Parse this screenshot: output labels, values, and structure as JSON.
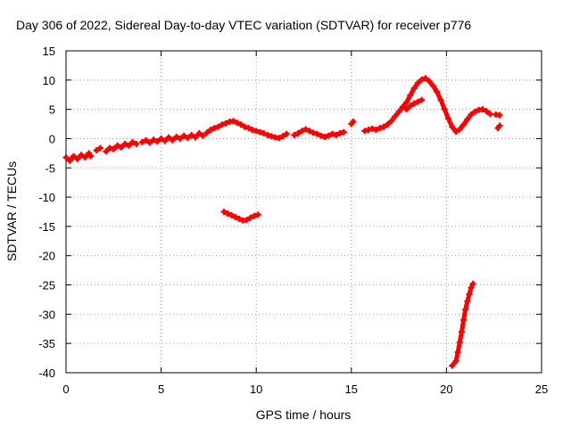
{
  "chart_data": {
    "type": "scatter",
    "title": "Day 306 of 2022, Sidereal Day-to-day VTEC variation (SDTVAR) for receiver p776",
    "xlabel": "GPS time / hours",
    "ylabel": "SDTVAR / TECUs",
    "xlim": [
      0,
      25
    ],
    "ylim": [
      -40,
      15
    ],
    "xticks": [
      0,
      5,
      10,
      15,
      20,
      25
    ],
    "yticks": [
      -40,
      -35,
      -30,
      -25,
      -20,
      -15,
      -10,
      -5,
      0,
      5,
      10,
      15
    ],
    "grid": true,
    "legend": "none",
    "series": [
      {
        "name": "SDTVAR",
        "color": "#ff0000",
        "marker": "plus",
        "segments": [
          [
            [
              0.0,
              -3.2
            ],
            [
              0.2,
              -3.8
            ],
            [
              0.4,
              -3.0
            ],
            [
              0.6,
              -3.5
            ],
            [
              0.8,
              -2.8
            ],
            [
              1.0,
              -3.2
            ],
            [
              1.2,
              -2.5
            ],
            [
              1.3,
              -3.0
            ]
          ],
          [
            [
              1.6,
              -2.0
            ],
            [
              1.8,
              -1.6
            ]
          ],
          [
            [
              2.1,
              -2.2
            ],
            [
              2.3,
              -1.6
            ],
            [
              2.5,
              -1.8
            ],
            [
              2.7,
              -1.2
            ],
            [
              2.9,
              -1.5
            ],
            [
              3.1,
              -0.9
            ],
            [
              3.3,
              -1.2
            ],
            [
              3.5,
              -0.6
            ],
            [
              3.7,
              -0.9
            ]
          ],
          [
            [
              4.0,
              -0.6
            ],
            [
              4.2,
              -0.3
            ],
            [
              4.4,
              -0.7
            ],
            [
              4.6,
              -0.2
            ],
            [
              4.8,
              -0.5
            ],
            [
              5.0,
              0.0
            ],
            [
              5.2,
              -0.4
            ],
            [
              5.4,
              0.2
            ],
            [
              5.6,
              -0.3
            ],
            [
              5.8,
              0.3
            ],
            [
              6.0,
              0.0
            ],
            [
              6.2,
              0.5
            ],
            [
              6.4,
              0.1
            ],
            [
              6.6,
              0.6
            ],
            [
              6.8,
              0.2
            ],
            [
              7.0,
              0.9
            ],
            [
              7.2,
              0.5
            ]
          ],
          [
            [
              7.4,
              1.0
            ],
            [
              7.6,
              1.5
            ],
            [
              7.8,
              1.8
            ],
            [
              8.0,
              2.0
            ],
            [
              8.2,
              2.4
            ],
            [
              8.4,
              2.6
            ],
            [
              8.6,
              2.9
            ],
            [
              8.8,
              3.0
            ],
            [
              9.0,
              2.7
            ],
            [
              9.2,
              2.4
            ],
            [
              9.4,
              2.0
            ],
            [
              9.6,
              1.8
            ],
            [
              9.8,
              1.5
            ],
            [
              10.0,
              1.3
            ],
            [
              10.2,
              1.1
            ],
            [
              10.4,
              0.9
            ]
          ],
          [
            [
              10.6,
              0.6
            ],
            [
              10.8,
              0.4
            ],
            [
              11.0,
              0.2
            ],
            [
              11.2,
              0.1
            ],
            [
              11.4,
              0.4
            ],
            [
              11.6,
              0.8
            ]
          ],
          [
            [
              12.0,
              0.6
            ],
            [
              12.2,
              0.9
            ],
            [
              12.4,
              1.3
            ],
            [
              12.6,
              1.6
            ],
            [
              12.8,
              1.3
            ],
            [
              13.0,
              1.0
            ],
            [
              13.2,
              0.8
            ],
            [
              13.4,
              0.5
            ],
            [
              13.6,
              0.3
            ],
            [
              13.8,
              0.5
            ],
            [
              14.0,
              0.8
            ],
            [
              14.2,
              0.6
            ],
            [
              14.4,
              0.9
            ],
            [
              14.6,
              1.1
            ]
          ],
          [
            [
              15.0,
              2.5
            ],
            [
              15.1,
              2.9
            ]
          ],
          [
            [
              15.7,
              1.3
            ],
            [
              15.9,
              1.5
            ],
            [
              16.1,
              1.7
            ],
            [
              16.3,
              1.5
            ],
            [
              16.5,
              1.8
            ],
            [
              16.7,
              2.0
            ],
            [
              16.9,
              2.4
            ],
            [
              17.1,
              3.0
            ],
            [
              17.3,
              3.8
            ],
            [
              17.5,
              4.6
            ],
            [
              17.7,
              5.4
            ],
            [
              17.9,
              6.2
            ],
            [
              18.1,
              7.4
            ],
            [
              18.3,
              8.6
            ],
            [
              18.5,
              9.5
            ],
            [
              18.7,
              10.1
            ],
            [
              18.9,
              10.3
            ],
            [
              19.1,
              9.8
            ],
            [
              19.3,
              9.0
            ],
            [
              19.5,
              8.0
            ],
            [
              19.7,
              6.6
            ],
            [
              19.9,
              5.0
            ],
            [
              20.1,
              3.4
            ],
            [
              20.3,
              2.0
            ],
            [
              20.5,
              1.2
            ],
            [
              20.7,
              1.6
            ],
            [
              20.9,
              2.4
            ],
            [
              21.1,
              3.3
            ],
            [
              21.3,
              4.1
            ],
            [
              21.5,
              4.6
            ],
            [
              21.7,
              4.9
            ],
            [
              21.9,
              5.0
            ],
            [
              22.1,
              4.7
            ],
            [
              22.3,
              4.2
            ]
          ],
          [
            [
              17.9,
              5.0
            ],
            [
              18.1,
              5.6
            ],
            [
              18.3,
              6.0
            ],
            [
              18.5,
              6.3
            ],
            [
              18.7,
              6.6
            ]
          ],
          [
            [
              22.6,
              4.1
            ],
            [
              22.8,
              4.0
            ]
          ],
          [
            [
              22.7,
              1.8
            ],
            [
              22.8,
              2.2
            ]
          ],
          [
            [
              8.3,
              -12.5
            ],
            [
              8.5,
              -12.8
            ],
            [
              8.7,
              -13.1
            ],
            [
              8.9,
              -13.4
            ],
            [
              9.1,
              -13.7
            ],
            [
              9.3,
              -14.0
            ],
            [
              9.5,
              -13.9
            ],
            [
              9.7,
              -13.5
            ],
            [
              9.9,
              -13.2
            ],
            [
              10.1,
              -13.0
            ]
          ],
          [
            [
              20.3,
              -38.8
            ],
            [
              20.5,
              -38.0
            ],
            [
              20.6,
              -36.5
            ],
            [
              20.7,
              -34.8
            ],
            [
              20.8,
              -33.0
            ],
            [
              20.9,
              -31.0
            ],
            [
              21.0,
              -29.2
            ],
            [
              21.1,
              -27.8
            ],
            [
              21.2,
              -26.6
            ],
            [
              21.3,
              -25.5
            ],
            [
              21.4,
              -24.8
            ]
          ]
        ]
      }
    ]
  }
}
